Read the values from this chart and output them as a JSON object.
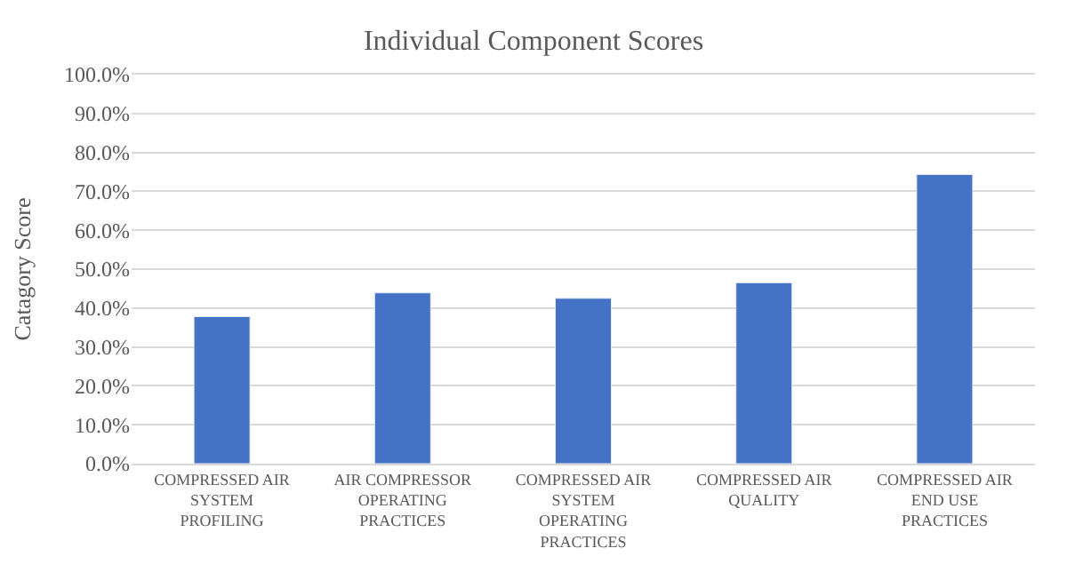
{
  "chart_data": {
    "type": "bar",
    "title": "Individual Component Scores",
    "ylabel": "Catagory Score",
    "categories": [
      "COMPRESSED AIR SYSTEM PROFILING",
      "AIR COMPRESSOR OPERATING PRACTICES",
      "COMPRESSED AIR SYSTEM OPERATING PRACTICES",
      "COMPRESSED AIR QUALITY",
      "COMPRESSED AIR END USE PRACTICES"
    ],
    "values": [
      37.8,
      43.9,
      42.5,
      46.5,
      74.3
    ],
    "color": "#4472c4",
    "ylim": [
      0,
      100
    ],
    "yticks": [
      {
        "value": 0,
        "label": "0.0%"
      },
      {
        "value": 10,
        "label": "10.0%"
      },
      {
        "value": 20,
        "label": "20.0%"
      },
      {
        "value": 30,
        "label": "30.0%"
      },
      {
        "value": 40,
        "label": "40.0%"
      },
      {
        "value": 50,
        "label": "50.0%"
      },
      {
        "value": 60,
        "label": "60.0%"
      },
      {
        "value": 70,
        "label": "70.0%"
      },
      {
        "value": 80,
        "label": "80.0%"
      },
      {
        "value": 90,
        "label": "90.0%"
      },
      {
        "value": 100,
        "label": "100.0%"
      }
    ],
    "grid": "y"
  }
}
